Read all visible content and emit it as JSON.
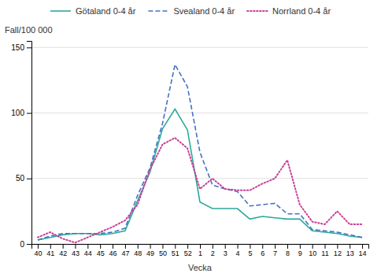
{
  "chart_data": {
    "type": "line",
    "x_label": "Vecka",
    "y_label": "Fall/100 000",
    "categories": [
      "40",
      "41",
      "42",
      "43",
      "44",
      "45",
      "46",
      "47",
      "48",
      "49",
      "50",
      "51",
      "52",
      "1",
      "2",
      "3",
      "4",
      "5",
      "6",
      "7",
      "8",
      "9",
      "10",
      "11",
      "12",
      "13",
      "14"
    ],
    "series": [
      {
        "name": "Götaland 0-4 år",
        "color": "#2ca89a",
        "line_style": "solid",
        "values": [
          3,
          5,
          7,
          8,
          8,
          7,
          8,
          10,
          33,
          55,
          88,
          103,
          87,
          32,
          27,
          27,
          27,
          19,
          21,
          20,
          19,
          19,
          10,
          9,
          8,
          6,
          5
        ]
      },
      {
        "name": "Svealand 0-4 år",
        "color": "#4472c4",
        "line_style": "dashed",
        "values": [
          3,
          6,
          8,
          8,
          8,
          8,
          9,
          12,
          37,
          58,
          92,
          137,
          120,
          70,
          45,
          42,
          40,
          29,
          30,
          31,
          23,
          23,
          11,
          10,
          9,
          7,
          5
        ]
      },
      {
        "name": "Norrland 0-4 år",
        "color": "#c84196",
        "line_style": "dotted",
        "values": [
          5,
          9,
          4,
          1,
          5,
          9,
          13,
          18,
          30,
          57,
          76,
          81,
          73,
          42,
          50,
          42,
          41,
          41,
          46,
          50,
          64,
          30,
          17,
          15,
          25,
          15,
          15
        ]
      }
    ],
    "ylim": [
      0,
      155
    ],
    "yticks": [
      0,
      50,
      100,
      150
    ],
    "grid": true,
    "legend": "top"
  }
}
